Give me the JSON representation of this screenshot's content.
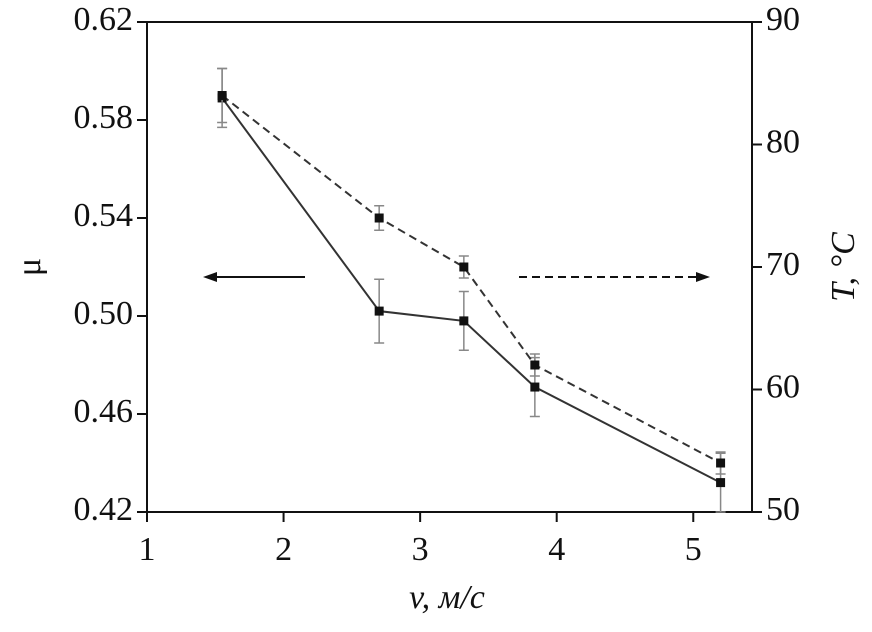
{
  "chart_data": {
    "type": "line",
    "x_label": "v, м/с",
    "y_label": "μ",
    "y2_label": "T, °C",
    "x": [
      1.55,
      2.7,
      3.32,
      3.84,
      5.2
    ],
    "series": [
      {
        "color": "#333333",
        "line_style": "solid",
        "values": [
          0.589,
          0.502,
          0.498,
          0.471,
          0.432
        ],
        "errors": [
          0.012,
          0.013,
          0.012,
          0.012,
          0.012
        ]
      },
      {
        "color": "#333333",
        "line_style": "dashed",
        "axis": "y2",
        "values": [
          84,
          74,
          70,
          62,
          54
        ],
        "errors": [
          2.2,
          1.0,
          0.9,
          0.9,
          0.9
        ]
      }
    ],
    "xlim": [
      1,
      5.43
    ],
    "xticks": [
      1,
      2,
      3,
      4,
      5
    ],
    "ylim": [
      0.42,
      0.62
    ],
    "yticks": [
      0.42,
      0.46,
      {
        "value": 0.5,
        "label": "0.50"
      },
      0.54,
      0.58,
      0.62
    ],
    "y2lim": [
      50,
      90
    ],
    "y2ticks": [
      50,
      60,
      70,
      80,
      90
    ]
  }
}
